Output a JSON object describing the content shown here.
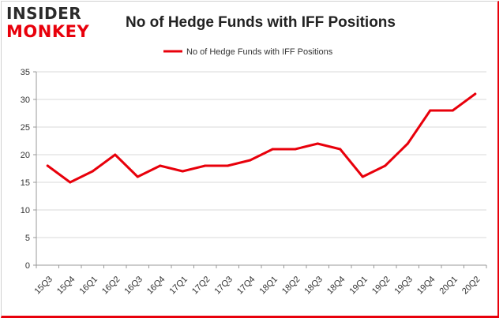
{
  "brand": {
    "line1": "INSIDER",
    "line2": "MONKEY"
  },
  "chart_data": {
    "type": "line",
    "title": "No of Hedge Funds with IFF Positions",
    "xlabel": "",
    "ylabel": "",
    "categories": [
      "15Q3",
      "15Q4",
      "16Q1",
      "16Q2",
      "16Q3",
      "16Q4",
      "17Q1",
      "17Q2",
      "17Q3",
      "17Q4",
      "18Q1",
      "18Q2",
      "18Q3",
      "18Q4",
      "19Q1",
      "19Q2",
      "19Q3",
      "19Q4",
      "20Q1",
      "20Q2"
    ],
    "series": [
      {
        "name": "No of Hedge Funds with IFF Positions",
        "color": "#e8000b",
        "values": [
          18,
          15,
          17,
          20,
          16,
          18,
          17,
          18,
          18,
          19,
          21,
          21,
          22,
          21,
          16,
          18,
          22,
          28,
          28,
          31
        ]
      }
    ],
    "ylim": [
      0,
      35
    ],
    "yticks": [
      0,
      5,
      10,
      15,
      20,
      25,
      30,
      35
    ],
    "grid": true,
    "legend_position": "top-center"
  }
}
